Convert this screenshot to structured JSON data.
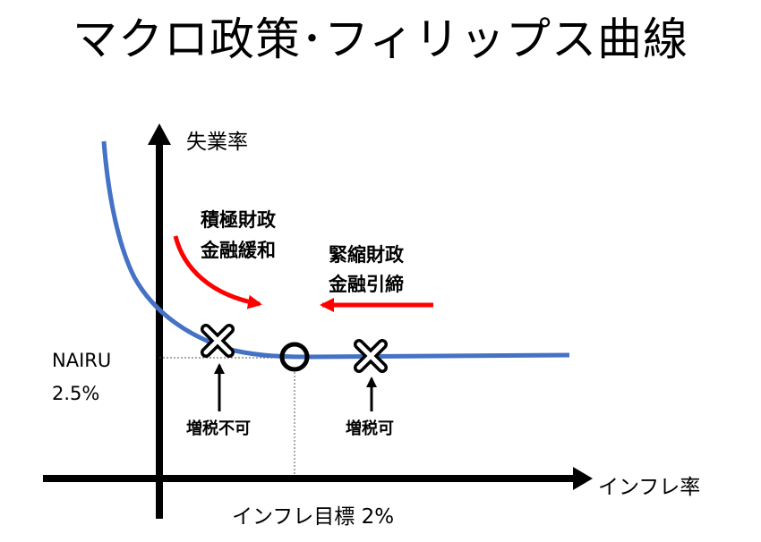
{
  "title": "マクロ政策･フィリップス曲線",
  "axes": {
    "y_label": "失業率",
    "x_label": "インフレ率"
  },
  "nairu": {
    "name": "NAIRU",
    "value": "2.5%"
  },
  "inflation_target": "インフレ目標 2%",
  "left_policy": {
    "line1": "積極財政",
    "line2": "金融緩和"
  },
  "right_policy": {
    "line1": "緊縮財政",
    "line2": "金融引締"
  },
  "markers": {
    "left_label": "増税不可",
    "right_label": "増税可"
  },
  "colors": {
    "curve": "#4472c4",
    "policy_arrow": "#ff0000",
    "axis": "#000000"
  }
}
